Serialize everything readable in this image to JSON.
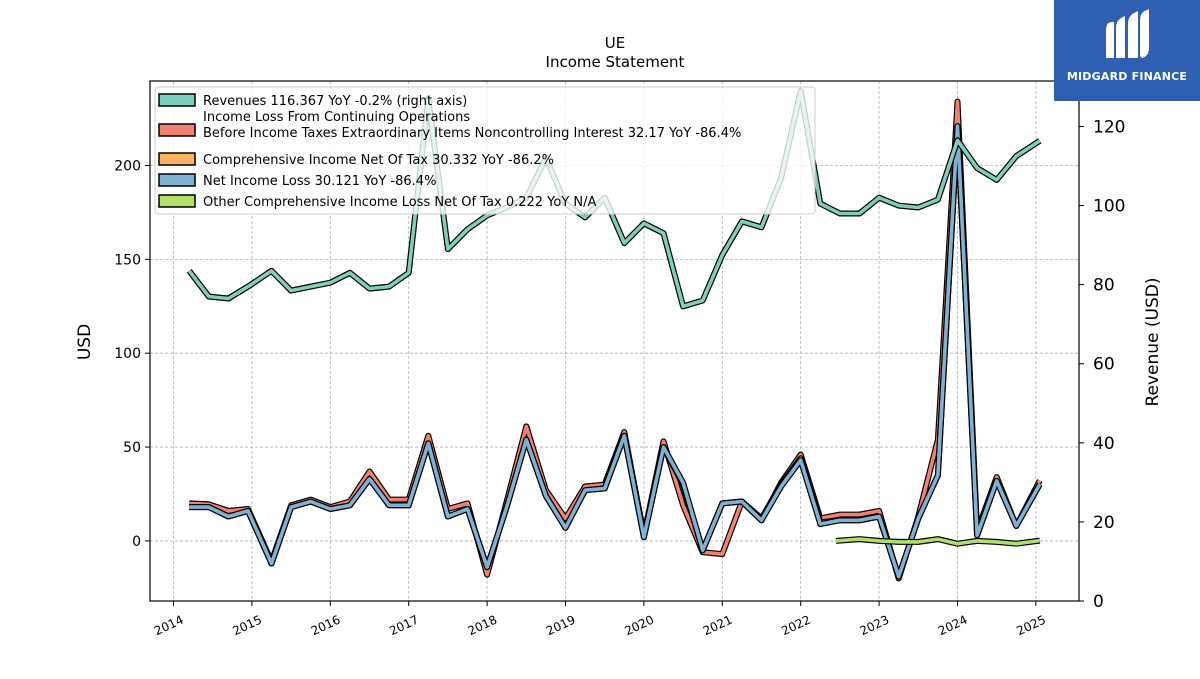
{
  "brand": {
    "name": "MIDGARD FINANCE",
    "bg_color": "#2f5fb0",
    "icon": "midgard-logo-icon"
  },
  "chart_data": {
    "type": "line",
    "title": "UE",
    "subtitle": "Income Statement",
    "ylabel_left": "USD",
    "ylabel_right": "Revenue (USD)",
    "xlabel": "",
    "ylim_left": [
      -32,
      245
    ],
    "ylim_right": [
      0,
      131.5
    ],
    "yticks_left": [
      0,
      50,
      100,
      150,
      200
    ],
    "yticks_right": [
      0,
      20,
      40,
      60,
      80,
      100,
      120
    ],
    "xlim": [
      2013.7,
      2025.55
    ],
    "xticks": [
      2014,
      2015,
      2016,
      2017,
      2018,
      2019,
      2020,
      2021,
      2022,
      2023,
      2024,
      2025
    ],
    "grid": true,
    "legend_position": "top-left",
    "series": [
      {
        "name": "Revenues  116.367 YoY -0.2% (right axis)",
        "axis": "right",
        "color": "#7fcdbb",
        "x": [
          2014.2,
          2014.45,
          2014.7,
          2014.95,
          2015.25,
          2015.5,
          2015.75,
          2016.0,
          2016.25,
          2016.5,
          2016.75,
          2017.0,
          2017.25,
          2017.5,
          2017.75,
          2018.0,
          2018.25,
          2018.5,
          2018.75,
          2019.0,
          2019.25,
          2019.5,
          2019.75,
          2020.0,
          2020.25,
          2020.5,
          2020.75,
          2021.0,
          2021.25,
          2021.5,
          2021.75,
          2022.0,
          2022.25,
          2022.5,
          2022.75,
          2023.0,
          2023.25,
          2023.5,
          2023.75,
          2024.0,
          2024.25,
          2024.5,
          2024.75,
          2025.05
        ],
        "values": [
          83.5,
          77,
          76.5,
          79.5,
          83.5,
          78.5,
          79.5,
          80.5,
          83,
          79,
          79.5,
          83,
          127,
          89,
          94,
          97.5,
          99.5,
          102,
          112,
          100.5,
          97,
          102,
          90.5,
          95.5,
          93,
          74.5,
          76,
          87.5,
          96,
          94.5,
          107,
          129,
          100.5,
          98,
          98,
          102,
          100,
          99.5,
          101.5,
          116.5,
          109.5,
          106.5,
          112.5,
          116.4
        ]
      },
      {
        "name": "Income Loss From Continuing Operations\nBefore Income Taxes Extraordinary Items Noncontrolling Interest  32.17 YoY -86.4%",
        "axis": "left",
        "color": "#f4816f",
        "x": [
          2014.2,
          2014.45,
          2014.7,
          2014.95,
          2015.25,
          2015.5,
          2015.75,
          2016.0,
          2016.25,
          2016.5,
          2016.75,
          2017.0,
          2017.25,
          2017.5,
          2017.75,
          2018.0,
          2018.25,
          2018.5,
          2018.75,
          2019.0,
          2019.25,
          2019.5,
          2019.75,
          2020.0,
          2020.25,
          2020.5,
          2020.75,
          2021.0,
          2021.25,
          2021.5,
          2021.75,
          2022.0,
          2022.25,
          2022.5,
          2022.75,
          2023.0,
          2023.25,
          2023.5,
          2023.75,
          2024.0,
          2024.25,
          2024.5,
          2024.75,
          2025.05
        ],
        "values": [
          20,
          19.5,
          16,
          17,
          -11,
          19,
          22,
          18,
          21,
          37,
          22,
          22,
          56,
          17,
          20,
          -18,
          21,
          61,
          27,
          12,
          29,
          30,
          58,
          3,
          53,
          19,
          -6,
          -7,
          21,
          11,
          31,
          46,
          12,
          14,
          14,
          16,
          -20,
          13,
          54,
          234,
          5,
          34,
          8,
          32.2
        ]
      },
      {
        "name": "Comprehensive Income Net Of Tax  30.332 YoY -86.2%",
        "axis": "left",
        "color": "#fdb462",
        "x": [
          2014.2,
          2014.45,
          2014.7,
          2014.95,
          2015.25,
          2015.5,
          2015.75,
          2016.0,
          2016.25,
          2016.5,
          2016.75,
          2017.0,
          2017.25,
          2017.5,
          2017.75,
          2018.0,
          2018.25,
          2018.5,
          2018.75,
          2019.0,
          2019.25,
          2019.5,
          2019.75,
          2020.0,
          2020.25,
          2020.5,
          2020.75,
          2021.0,
          2021.25,
          2021.5,
          2021.75,
          2022.0,
          2022.25,
          2022.5,
          2022.75,
          2023.0,
          2023.25,
          2023.5,
          2023.75,
          2024.0,
          2024.25,
          2024.5,
          2024.75,
          2025.05
        ],
        "values": [
          18,
          18,
          13,
          16,
          -12,
          18,
          21,
          17,
          19,
          33,
          19,
          19,
          52,
          13,
          17,
          -14,
          18,
          54,
          24,
          7,
          27,
          28,
          56,
          2,
          50,
          30,
          -5,
          20,
          21,
          12,
          30,
          44,
          10,
          11,
          11,
          13,
          -19,
          12,
          35,
          220,
          3,
          32,
          8,
          30.3
        ]
      },
      {
        "name": "Net Income Loss  30.121 YoY -86.4%",
        "axis": "left",
        "color": "#80b1d3",
        "x": [
          2014.2,
          2014.45,
          2014.7,
          2014.95,
          2015.25,
          2015.5,
          2015.75,
          2016.0,
          2016.25,
          2016.5,
          2016.75,
          2017.0,
          2017.25,
          2017.5,
          2017.75,
          2018.0,
          2018.25,
          2018.5,
          2018.75,
          2019.0,
          2019.25,
          2019.5,
          2019.75,
          2020.0,
          2020.25,
          2020.5,
          2020.75,
          2021.0,
          2021.25,
          2021.5,
          2021.75,
          2022.0,
          2022.25,
          2022.5,
          2022.75,
          2023.0,
          2023.25,
          2023.5,
          2023.75,
          2024.0,
          2024.25,
          2024.5,
          2024.75,
          2025.05
        ],
        "values": [
          18,
          18,
          13,
          16,
          -12,
          18,
          21,
          17,
          19,
          33,
          19,
          19,
          52,
          13,
          17,
          -14,
          18,
          54,
          24,
          7,
          27,
          28,
          56,
          2,
          50,
          31,
          -5,
          20,
          21,
          11,
          29,
          43,
          9,
          11,
          11,
          13,
          -19,
          12,
          35,
          221,
          3,
          32,
          8,
          30.1
        ]
      },
      {
        "name": "Other Comprehensive Income Loss Net Of Tax  0.222 YoY N/A",
        "axis": "left",
        "color": "#b3de69",
        "x": [
          2022.45,
          2022.75,
          2023.0,
          2023.25,
          2023.5,
          2023.75,
          2024.0,
          2024.25,
          2024.5,
          2024.75,
          2025.05
        ],
        "values": [
          0,
          1,
          0,
          -0.5,
          -0.5,
          1,
          -1.5,
          0,
          -0.5,
          -1.5,
          0.2
        ]
      }
    ]
  }
}
